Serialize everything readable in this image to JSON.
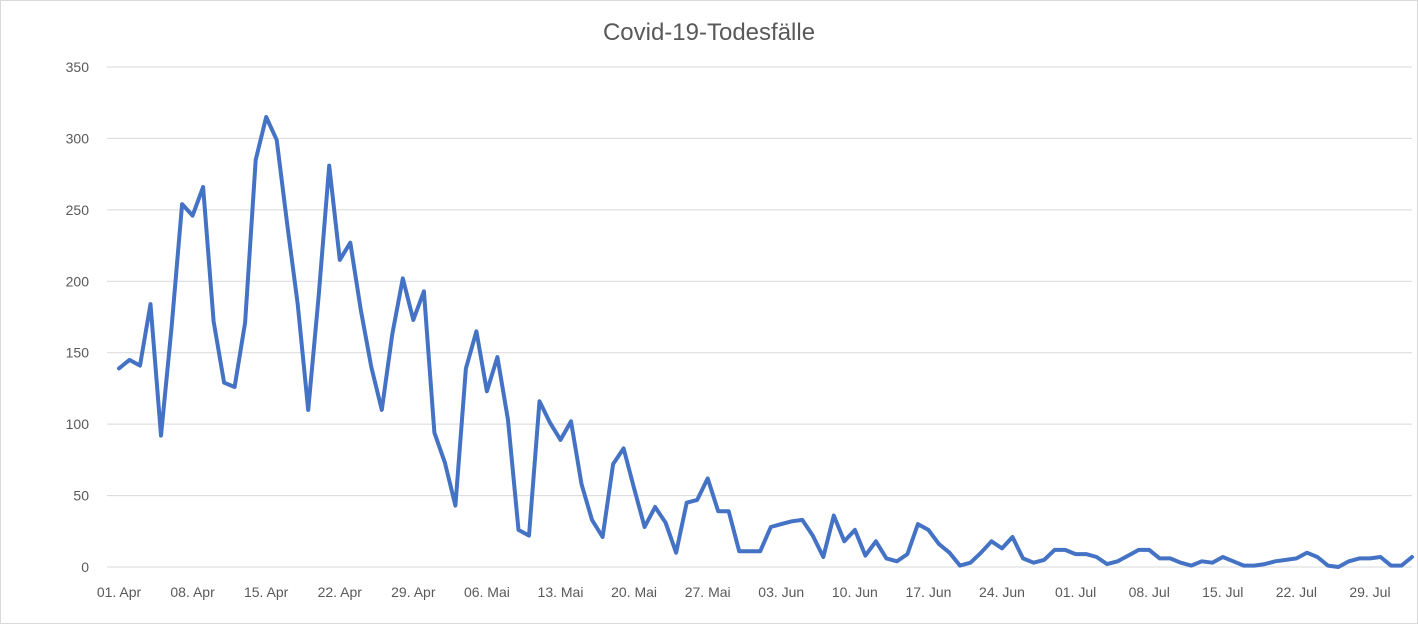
{
  "chart_data": {
    "type": "line",
    "title": "Covid-19-Todesfälle",
    "xlabel": "",
    "ylabel": "",
    "ylim": [
      0,
      350
    ],
    "y_ticks": [
      0,
      50,
      100,
      150,
      200,
      250,
      300,
      350
    ],
    "grid": true,
    "legend": "none",
    "x_tick_labels": [
      "01. Apr",
      "08. Apr",
      "15. Apr",
      "22. Apr",
      "29. Apr",
      "06. Mai",
      "13. Mai",
      "20. Mai",
      "27. Mai",
      "03. Jun",
      "10. Jun",
      "17. Jun",
      "24. Jun",
      "01. Jul",
      "08. Jul",
      "15. Jul",
      "22. Jul",
      "29. Jul"
    ],
    "x_start": "01. Apr",
    "series": [
      {
        "color": "#4472c4",
        "values": [
          139,
          145,
          141,
          184,
          92,
          168,
          254,
          246,
          266,
          172,
          129,
          126,
          171,
          285,
          315,
          299,
          240,
          184,
          110,
          190,
          281,
          215,
          227,
          180,
          140,
          110,
          163,
          202,
          173,
          193,
          94,
          73,
          43,
          139,
          165,
          123,
          147,
          103,
          26,
          22,
          116,
          101,
          89,
          102,
          58,
          33,
          21,
          72,
          83,
          55,
          28,
          42,
          31,
          10,
          45,
          47,
          62,
          39,
          39,
          11,
          11,
          11,
          28,
          30,
          32,
          33,
          22,
          7,
          36,
          18,
          26,
          8,
          18,
          6,
          4,
          9,
          30,
          26,
          16,
          10,
          1,
          3,
          10,
          18,
          13,
          21,
          6,
          3,
          5,
          12,
          12,
          9,
          9,
          7,
          2,
          4,
          8,
          12,
          12,
          6,
          6,
          3,
          1,
          4,
          3,
          7,
          4,
          1,
          1,
          2,
          4,
          5,
          6,
          10,
          7,
          1,
          0,
          4,
          6,
          6,
          7,
          1,
          1,
          7
        ]
      }
    ],
    "colors": {
      "line": "#4472c4",
      "grid": "#d9d9d9",
      "text": "#595959"
    }
  }
}
